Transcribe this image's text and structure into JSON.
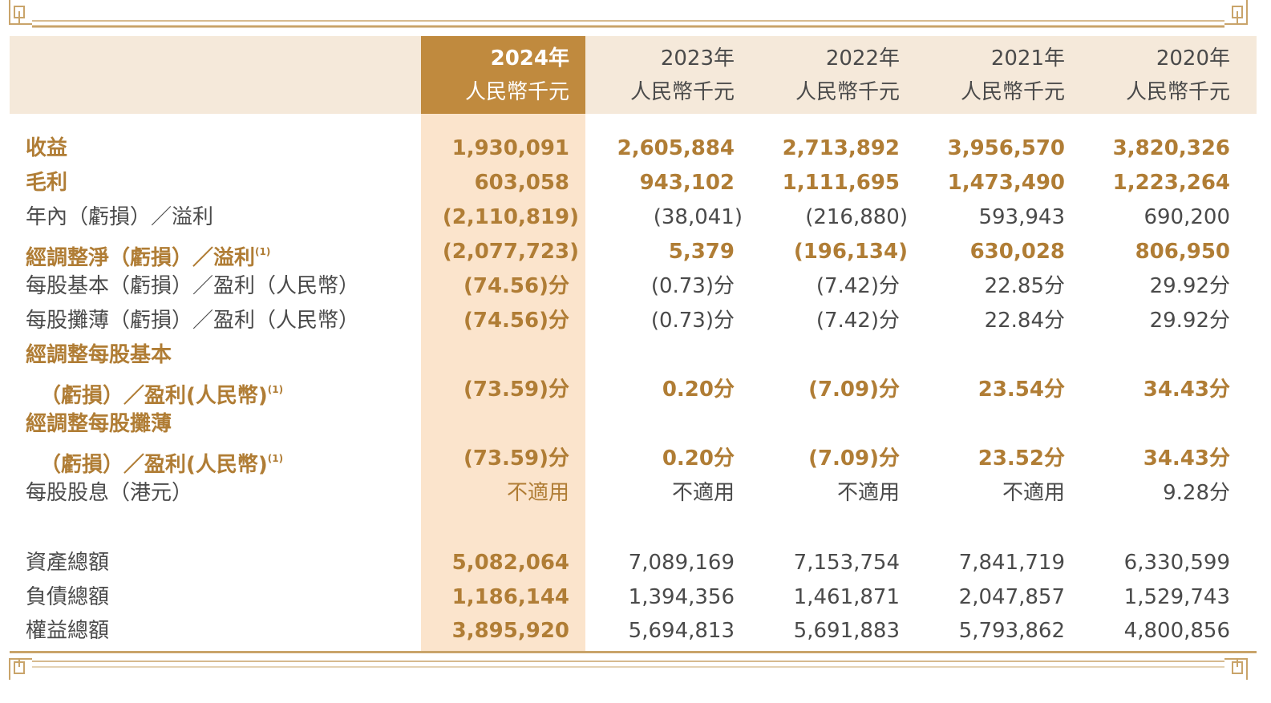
{
  "columns": [
    {
      "year": "2024年",
      "unit": "人民幣千元",
      "highlight": true
    },
    {
      "year": "2023年",
      "unit": "人民幣千元",
      "highlight": false
    },
    {
      "year": "2022年",
      "unit": "人民幣千元",
      "highlight": false
    },
    {
      "year": "2021年",
      "unit": "人民幣千元",
      "highlight": false
    },
    {
      "year": "2020年",
      "unit": "人民幣千元",
      "highlight": false
    }
  ],
  "rows": [
    {
      "label": "收益",
      "emphasis": true,
      "values": [
        "1,930,091",
        "2,605,884",
        "2,713,892",
        "3,956,570",
        "3,820,326"
      ]
    },
    {
      "label": "毛利",
      "emphasis": true,
      "values": [
        "603,058",
        "943,102",
        "1,111,695",
        "1,473,490",
        "1,223,264"
      ]
    },
    {
      "label": "年內（虧損）／溢利",
      "emphasis": false,
      "values": [
        "(2,110,819)",
        "(38,041)",
        "(216,880)",
        "593,943",
        "690,200"
      ]
    },
    {
      "label": "經調整淨（虧損）／溢利",
      "note": "(1)",
      "emphasis": true,
      "values": [
        "(2,077,723)",
        "5,379",
        "(196,134)",
        "630,028",
        "806,950"
      ]
    },
    {
      "label": "每股基本（虧損）／盈利（人民幣）",
      "emphasis": false,
      "values": [
        "(74.56)分",
        "(0.73)分",
        "(7.42)分",
        "22.85分",
        "29.92分"
      ]
    },
    {
      "label": "每股攤薄（虧損）／盈利（人民幣）",
      "emphasis": false,
      "values": [
        "(74.56)分",
        "(0.73)分",
        "(7.42)分",
        "22.84分",
        "29.92分"
      ]
    },
    {
      "label": "經調整每股基本",
      "label2": "（虧損）／盈利(人民幣)",
      "note": "(1)",
      "emphasis": true,
      "values": [
        "(73.59)分",
        "0.20分",
        "(7.09)分",
        "23.54分",
        "34.43分"
      ]
    },
    {
      "label": "經調整每股攤薄",
      "label2": "（虧損）／盈利(人民幣)",
      "note": "(1)",
      "emphasis": true,
      "values": [
        "(73.59)分",
        "0.20分",
        "(7.09)分",
        "23.52分",
        "34.43分"
      ]
    },
    {
      "label": "每股股息（港元）",
      "emphasis": false,
      "values": [
        "不適用",
        "不適用",
        "不適用",
        "不適用",
        "9.28分"
      ]
    },
    {
      "label": "資產總額",
      "emphasis": false,
      "values": [
        "5,082,064",
        "7,089,169",
        "7,153,754",
        "7,841,719",
        "6,330,599"
      ]
    },
    {
      "label": "負債總額",
      "emphasis": false,
      "values": [
        "1,186,144",
        "1,394,356",
        "1,461,871",
        "2,047,857",
        "1,529,743"
      ]
    },
    {
      "label": "權益總額",
      "emphasis": false,
      "values": [
        "3,895,920",
        "5,694,813",
        "5,691,883",
        "5,793,862",
        "4,800,856"
      ]
    }
  ],
  "colors": {
    "accent": "#c08a3e",
    "accent_light": "#fbe4cc",
    "header_bg": "#f5e9da",
    "text_gold": "#b07d35",
    "text": "#4a4a4a"
  }
}
